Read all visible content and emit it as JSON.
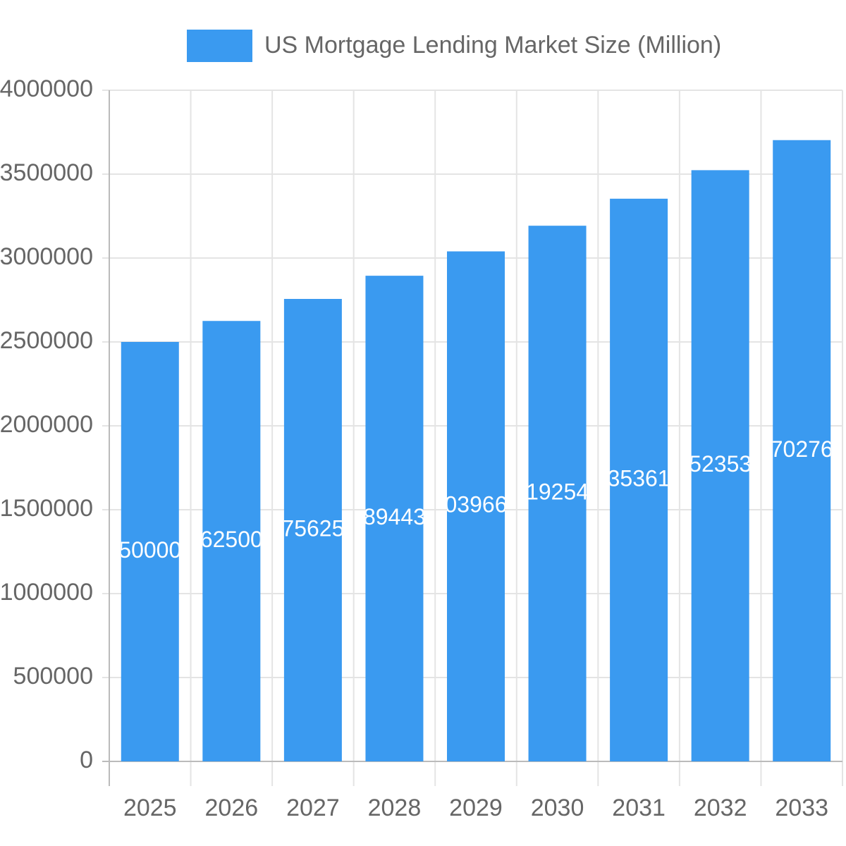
{
  "chart_data": {
    "type": "bar",
    "legend_label": "US Mortgage Lending Market Size (Million)",
    "categories": [
      "2025",
      "2026",
      "2027",
      "2028",
      "2029",
      "2030",
      "2031",
      "2032",
      "2033"
    ],
    "values": [
      2500000,
      2625000,
      2756250,
      2894430,
      3039660,
      3192540,
      3353610,
      3523530,
      3702760
    ],
    "color": "#3a9af0",
    "ylim": [
      0,
      4000000
    ],
    "yticks": [
      0,
      500000,
      1000000,
      1500000,
      2000000,
      2500000,
      3000000,
      3500000,
      4000000
    ],
    "grid": true
  }
}
